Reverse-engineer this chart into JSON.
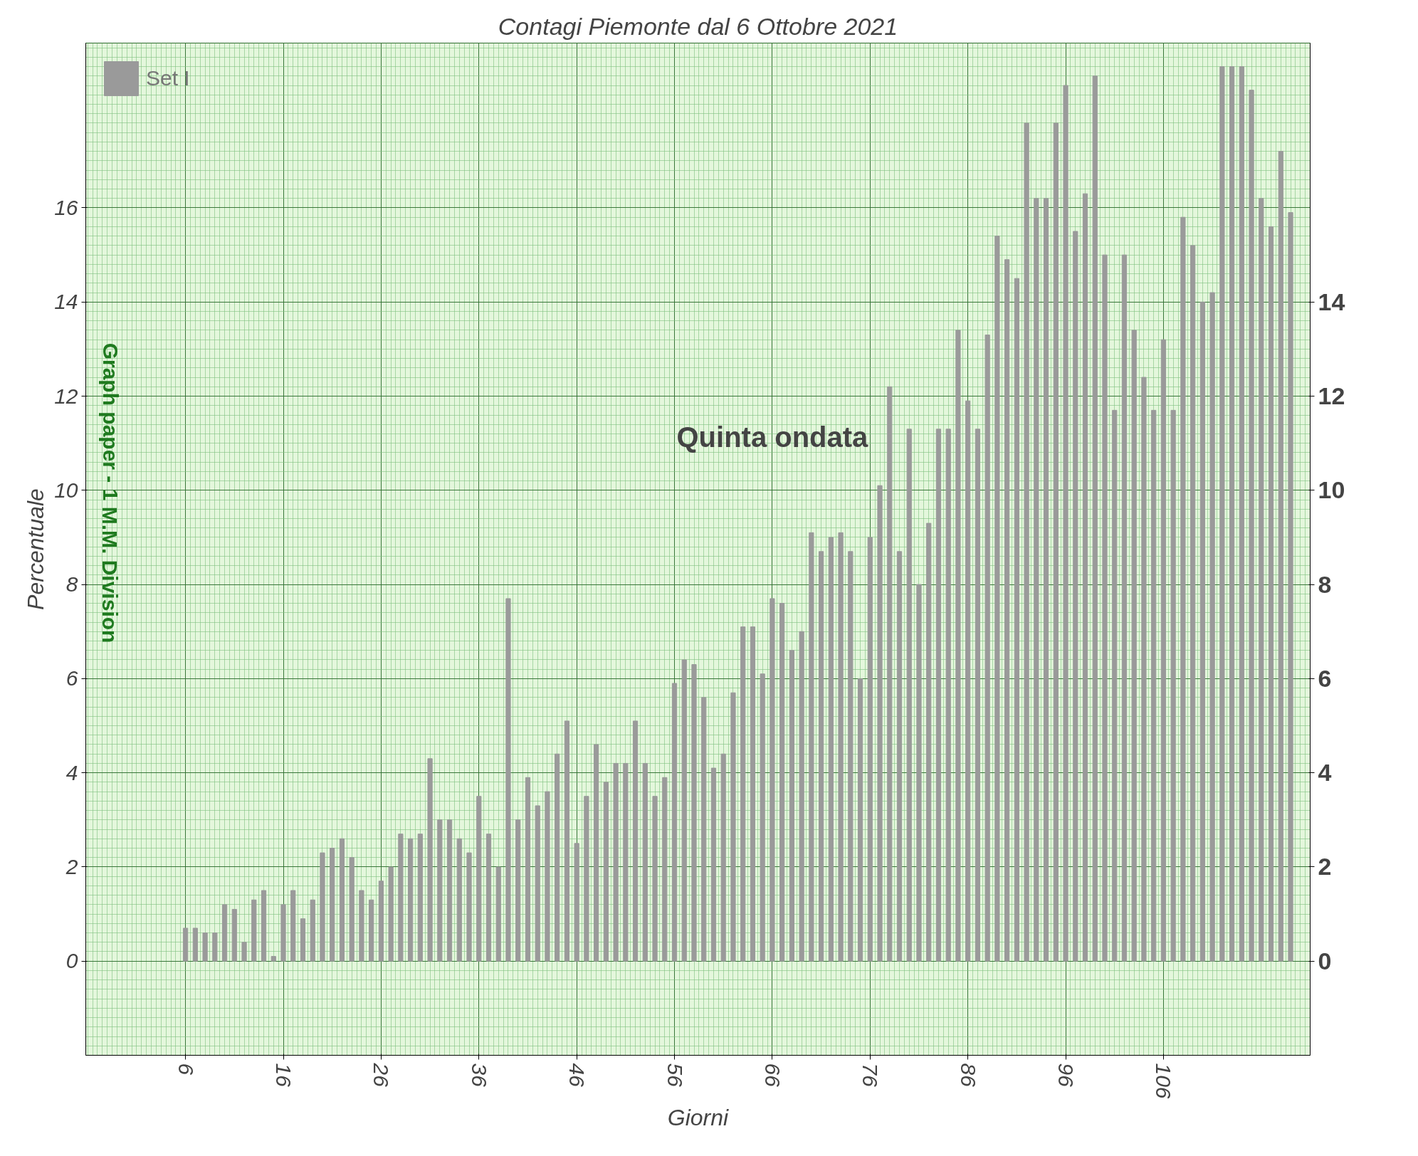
{
  "chart_data": {
    "type": "bar",
    "title": "Contagi Piemonte dal 6 Ottobre 2021",
    "xlabel": "Giorni",
    "ylabel": "Percentuale",
    "annotations": [
      "Quinta ondata",
      "Graph paper - 1 M.M. Division"
    ],
    "x": [
      6,
      7,
      8,
      9,
      10,
      11,
      12,
      13,
      14,
      15,
      16,
      17,
      18,
      19,
      20,
      21,
      22,
      23,
      24,
      25,
      26,
      27,
      28,
      29,
      30,
      31,
      32,
      33,
      34,
      35,
      36,
      37,
      38,
      39,
      40,
      41,
      42,
      43,
      44,
      45,
      46,
      47,
      48,
      49,
      50,
      51,
      52,
      53,
      54,
      55,
      56,
      57,
      58,
      59,
      60,
      61,
      62,
      63,
      64,
      65,
      66,
      67,
      68,
      69,
      70,
      71,
      72,
      73,
      74,
      75,
      76,
      77,
      78,
      79,
      80,
      81,
      82,
      83,
      84,
      85,
      86,
      87,
      88,
      89,
      90,
      91,
      92,
      93,
      94,
      95,
      96,
      97,
      98,
      99,
      100,
      101,
      102,
      103,
      104,
      105,
      106,
      107,
      108,
      109,
      110,
      111,
      112,
      113,
      114,
      115,
      116,
      117,
      118,
      119
    ],
    "series": [
      {
        "name": "Set I",
        "color": "#9a9a9a",
        "values": [
          0.7,
          0.7,
          0.6,
          0.6,
          1.2,
          1.1,
          0.4,
          1.3,
          1.5,
          0.1,
          1.2,
          1.5,
          0.9,
          1.3,
          2.3,
          2.4,
          2.6,
          2.2,
          1.5,
          1.3,
          1.7,
          2.0,
          2.7,
          2.6,
          2.7,
          4.3,
          3.0,
          3.0,
          2.6,
          2.3,
          3.5,
          2.7,
          2.0,
          7.7,
          3.0,
          3.9,
          3.3,
          3.6,
          4.4,
          5.1,
          2.5,
          3.5,
          4.6,
          3.8,
          4.2,
          4.2,
          5.1,
          4.2,
          3.5,
          3.9,
          5.9,
          6.4,
          6.3,
          5.6,
          4.1,
          4.4,
          5.7,
          7.1,
          7.1,
          6.1,
          7.7,
          7.6,
          6.6,
          7.0,
          9.1,
          8.7,
          9.0,
          9.1,
          8.7,
          6.0,
          9.0,
          10.1,
          12.2,
          8.7,
          11.3,
          8.0,
          9.3,
          11.3,
          11.3,
          13.4,
          11.9,
          11.3,
          13.3,
          15.4,
          14.9,
          14.5,
          17.8,
          16.2,
          16.2,
          17.8,
          18.6,
          15.5,
          16.3,
          18.8,
          15.0,
          11.7,
          15.0,
          13.4,
          12.4,
          11.7,
          13.2,
          11.7,
          15.8,
          15.2,
          14.0,
          14.2,
          19.0,
          19.0,
          19.0,
          18.5,
          16.2,
          15.6,
          17.2,
          15.9
        ]
      }
    ],
    "xlim": [
      -4.2,
      121
    ],
    "ylim": [
      -2,
      19.5
    ],
    "y2lim": [
      -2,
      19.5
    ],
    "xticks": [
      6,
      16,
      26,
      36,
      46,
      56,
      66,
      76,
      86,
      96,
      106
    ],
    "yticks": [
      0,
      2,
      4,
      6,
      8,
      10,
      12,
      14,
      16
    ],
    "y2ticks": [
      0,
      2,
      4,
      6,
      8,
      10,
      12,
      14
    ],
    "grid": true,
    "legend": "top left"
  }
}
